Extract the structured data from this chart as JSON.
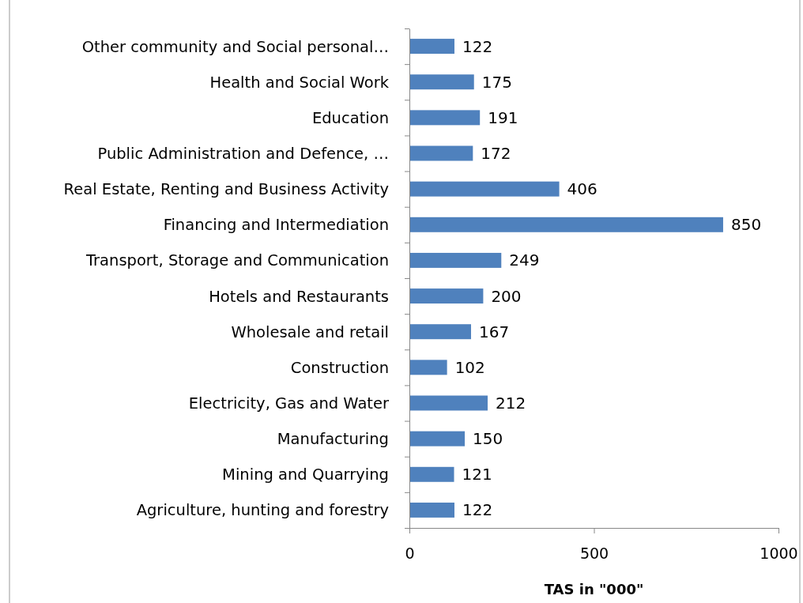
{
  "chart_data": {
    "type": "bar",
    "orientation": "horizontal",
    "xlabel": "TAS in \"000\"",
    "categories": [
      "Other community and Social personal…",
      "Health and Social Work",
      "Education",
      "Public Administration and Defence, …",
      "Real Estate, Renting and Business Activity",
      "Financing and Intermediation",
      "Transport, Storage and Communication",
      "Hotels and Restaurants",
      "Wholesale and retail",
      "Construction",
      "Electricity, Gas and Water",
      "Manufacturing",
      "Mining and Quarrying",
      "Agriculture, hunting and forestry"
    ],
    "values": [
      122,
      175,
      191,
      172,
      406,
      850,
      249,
      200,
      167,
      102,
      212,
      150,
      121,
      122
    ],
    "color": "#4f81bd",
    "xlim": [
      0,
      1000
    ],
    "xticks": [
      0,
      500,
      1000
    ],
    "data_labels": true
  }
}
